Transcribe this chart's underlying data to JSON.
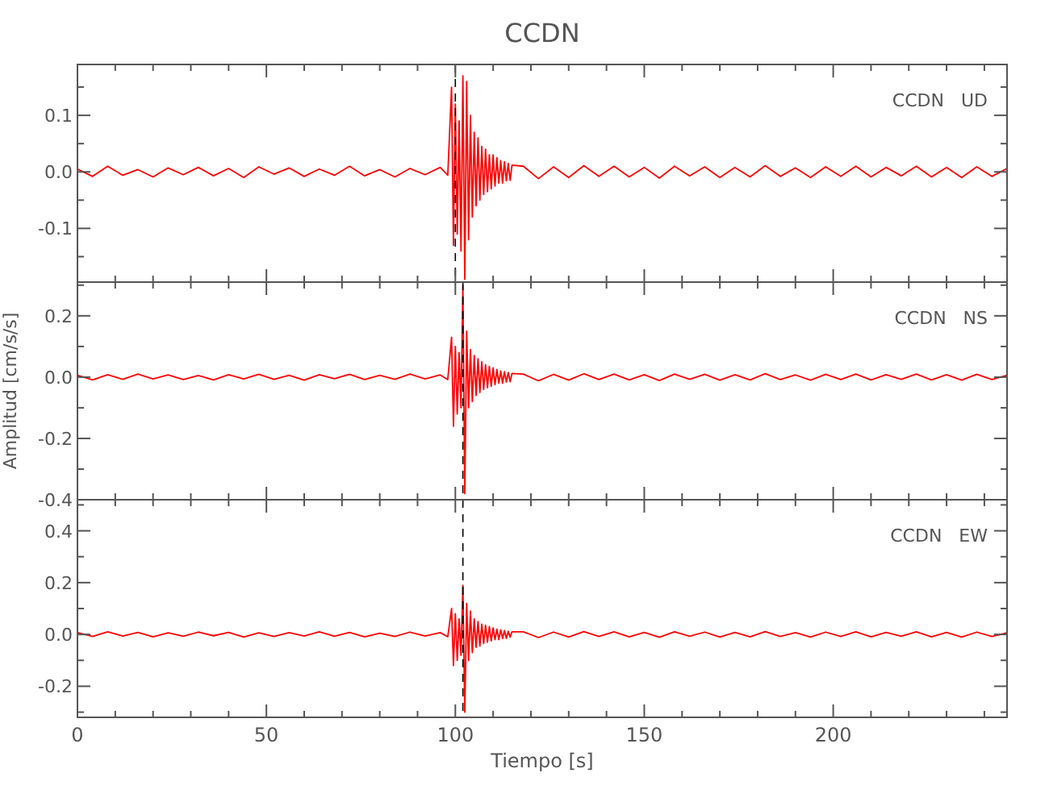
{
  "chart_data": [
    {
      "type": "line",
      "title": "CCDN",
      "annotations": [
        "CCDN   UD"
      ],
      "tick_labels": "y",
      "x": [
        0,
        4,
        8,
        12,
        16,
        20,
        24,
        28,
        32,
        36,
        40,
        44,
        48,
        52,
        56,
        60,
        64,
        68,
        72,
        76,
        80,
        84,
        88,
        92,
        96,
        98,
        99,
        99.5,
        100,
        100.5,
        101,
        101.5,
        102,
        102.5,
        103,
        103.5,
        104,
        104.5,
        105,
        105.5,
        106,
        106.5,
        107,
        107.5,
        108,
        108.5,
        109,
        109.5,
        110,
        110.5,
        111,
        111.5,
        112,
        112.5,
        113,
        113.5,
        114,
        114.5,
        115,
        118,
        122,
        126,
        130,
        134,
        138,
        142,
        146,
        150,
        154,
        158,
        162,
        166,
        170,
        174,
        178,
        182,
        186,
        190,
        194,
        198,
        202,
        206,
        210,
        214,
        218,
        222,
        226,
        230,
        234,
        238,
        242,
        246
      ],
      "series": [
        {
          "color": "#ff0000",
          "values": [
            0.005,
            -0.008,
            0.01,
            -0.006,
            0.004,
            -0.009,
            0.007,
            -0.005,
            0.008,
            -0.007,
            0.006,
            -0.01,
            0.009,
            -0.004,
            0.007,
            -0.008,
            0.005,
            -0.006,
            0.01,
            -0.007,
            0.004,
            -0.009,
            0.006,
            -0.005,
            0.008,
            -0.006,
            0.15,
            -0.13,
            0.12,
            -0.11,
            0.09,
            -0.14,
            0.17,
            -0.19,
            0.16,
            -0.12,
            0.1,
            -0.08,
            0.07,
            -0.06,
            0.06,
            -0.05,
            0.045,
            -0.04,
            0.04,
            -0.035,
            0.03,
            -0.03,
            0.03,
            -0.025,
            0.025,
            -0.02,
            0.02,
            -0.02,
            0.018,
            -0.016,
            0.015,
            -0.015,
            0.012,
            0.01,
            -0.012,
            0.009,
            -0.01,
            0.011,
            -0.008,
            0.01,
            -0.009,
            0.008,
            -0.011,
            0.01,
            -0.007,
            0.009,
            -0.01,
            0.008,
            -0.009,
            0.011,
            -0.008,
            0.007,
            -0.01,
            0.009,
            -0.008,
            0.01,
            -0.009,
            0.008,
            -0.007,
            0.01,
            -0.009,
            0.008,
            -0.01,
            0.009,
            -0.008,
            0.006
          ]
        }
      ],
      "xlim": [
        0,
        246
      ],
      "xticks": [
        0,
        {
          "value": 10,
          "label": null
        },
        {
          "value": 20,
          "label": null
        },
        {
          "value": 30,
          "label": null
        },
        {
          "value": 40,
          "label": null
        },
        50,
        {
          "value": 60,
          "label": null
        },
        {
          "value": 70,
          "label": null
        },
        {
          "value": 80,
          "label": null
        },
        {
          "value": 90,
          "label": null
        },
        100,
        {
          "value": 110,
          "label": null
        },
        {
          "value": 120,
          "label": null
        },
        {
          "value": 130,
          "label": null
        },
        {
          "value": 140,
          "label": null
        },
        150,
        {
          "value": 160,
          "label": null
        },
        {
          "value": 170,
          "label": null
        },
        {
          "value": 180,
          "label": null
        },
        {
          "value": 190,
          "label": null
        },
        200,
        {
          "value": 210,
          "label": null
        },
        {
          "value": 220,
          "label": null
        },
        {
          "value": 230,
          "label": null
        },
        {
          "value": 240,
          "label": null
        }
      ],
      "ylim": [
        -0.195,
        0.19
      ],
      "yticks": [
        {
          "value": -0.15,
          "label": null
        },
        -0.1,
        {
          "value": -0.05,
          "label": null
        },
        {
          "value": 0,
          "label": "0.0"
        },
        {
          "value": 0.05,
          "label": null
        },
        0.1,
        {
          "value": 0.15,
          "label": null
        }
      ],
      "ref_lines": [
        {
          "axis": "x",
          "value": 100,
          "color": "#000000",
          "line_style": "dashed"
        }
      ]
    },
    {
      "type": "line",
      "ylabel": "Amplitud [cm/s/s]",
      "annotations": [
        "CCDN   NS"
      ],
      "tick_labels": "y",
      "x": [
        0,
        4,
        8,
        12,
        16,
        20,
        24,
        28,
        32,
        36,
        40,
        44,
        48,
        52,
        56,
        60,
        64,
        68,
        72,
        76,
        80,
        84,
        88,
        92,
        96,
        98,
        99,
        99.5,
        100,
        100.5,
        101,
        101.5,
        102,
        102.5,
        103,
        103.5,
        104,
        104.5,
        105,
        105.5,
        106,
        106.5,
        107,
        107.5,
        108,
        108.5,
        109,
        109.5,
        110,
        110.5,
        111,
        111.5,
        112,
        112.5,
        113,
        113.5,
        114,
        114.5,
        115,
        118,
        122,
        126,
        130,
        134,
        138,
        142,
        146,
        150,
        154,
        158,
        162,
        166,
        170,
        174,
        178,
        182,
        186,
        190,
        194,
        198,
        202,
        206,
        210,
        214,
        218,
        222,
        226,
        230,
        234,
        238,
        242,
        246
      ],
      "series": [
        {
          "color": "#ff0000",
          "values": [
            0.006,
            -0.009,
            0.008,
            -0.007,
            0.01,
            -0.006,
            0.007,
            -0.008,
            0.005,
            -0.009,
            0.008,
            -0.006,
            0.009,
            -0.007,
            0.006,
            -0.01,
            0.008,
            -0.005,
            0.009,
            -0.008,
            0.006,
            -0.007,
            0.01,
            -0.006,
            0.007,
            -0.008,
            0.13,
            -0.16,
            0.1,
            -0.12,
            0.08,
            -0.1,
            0.3,
            -0.38,
            0.15,
            -0.1,
            0.09,
            -0.08,
            0.07,
            -0.06,
            0.06,
            -0.05,
            0.05,
            -0.04,
            0.04,
            -0.035,
            0.035,
            -0.03,
            0.03,
            -0.025,
            0.025,
            -0.02,
            0.02,
            -0.02,
            0.018,
            -0.016,
            0.015,
            -0.015,
            0.012,
            0.01,
            -0.012,
            0.009,
            -0.01,
            0.011,
            -0.008,
            0.01,
            -0.009,
            0.008,
            -0.011,
            0.01,
            -0.007,
            0.009,
            -0.01,
            0.008,
            -0.009,
            0.011,
            -0.008,
            0.007,
            -0.01,
            0.009,
            -0.008,
            0.01,
            -0.009,
            0.008,
            -0.007,
            0.01,
            -0.009,
            0.008,
            -0.01,
            0.009,
            -0.008,
            0.006
          ]
        }
      ],
      "xlim": [
        0,
        246
      ],
      "xticks": [
        0,
        {
          "value": 10,
          "label": null
        },
        {
          "value": 20,
          "label": null
        },
        {
          "value": 30,
          "label": null
        },
        {
          "value": 40,
          "label": null
        },
        50,
        {
          "value": 60,
          "label": null
        },
        {
          "value": 70,
          "label": null
        },
        {
          "value": 80,
          "label": null
        },
        {
          "value": 90,
          "label": null
        },
        100,
        {
          "value": 110,
          "label": null
        },
        {
          "value": 120,
          "label": null
        },
        {
          "value": 130,
          "label": null
        },
        {
          "value": 140,
          "label": null
        },
        150,
        {
          "value": 160,
          "label": null
        },
        {
          "value": 170,
          "label": null
        },
        {
          "value": 180,
          "label": null
        },
        {
          "value": 190,
          "label": null
        },
        200,
        {
          "value": 210,
          "label": null
        },
        {
          "value": 220,
          "label": null
        },
        {
          "value": 230,
          "label": null
        },
        {
          "value": 240,
          "label": null
        }
      ],
      "ylim": [
        -0.4,
        0.31
      ],
      "yticks": [
        -0.4,
        {
          "value": -0.3,
          "label": null
        },
        -0.2,
        {
          "value": -0.1,
          "label": null
        },
        {
          "value": 0,
          "label": "0.0"
        },
        {
          "value": 0.1,
          "label": null
        },
        0.2,
        {
          "value": 0.3,
          "label": null
        }
      ],
      "ref_lines": [
        {
          "axis": "x",
          "value": 102,
          "color": "#000000",
          "line_style": "dashed"
        }
      ]
    },
    {
      "type": "line",
      "xlabel": "Tiempo [s]",
      "annotations": [
        "CCDN   EW"
      ],
      "x": [
        0,
        4,
        8,
        12,
        16,
        20,
        24,
        28,
        32,
        36,
        40,
        44,
        48,
        52,
        56,
        60,
        64,
        68,
        72,
        76,
        80,
        84,
        88,
        92,
        96,
        98,
        99,
        99.5,
        100,
        100.5,
        101,
        101.5,
        102,
        102.5,
        103,
        103.5,
        104,
        104.5,
        105,
        105.5,
        106,
        106.5,
        107,
        107.5,
        108,
        108.5,
        109,
        109.5,
        110,
        110.5,
        111,
        111.5,
        112,
        112.5,
        113,
        113.5,
        114,
        114.5,
        115,
        118,
        122,
        126,
        130,
        134,
        138,
        142,
        146,
        150,
        154,
        158,
        162,
        166,
        170,
        174,
        178,
        182,
        186,
        190,
        194,
        198,
        202,
        206,
        210,
        214,
        218,
        222,
        226,
        230,
        234,
        238,
        242,
        246
      ],
      "series": [
        {
          "color": "#ff0000",
          "values": [
            0.007,
            -0.008,
            0.01,
            -0.006,
            0.008,
            -0.009,
            0.006,
            -0.007,
            0.009,
            -0.005,
            0.008,
            -0.01,
            0.006,
            -0.008,
            0.007,
            -0.006,
            0.01,
            -0.007,
            0.008,
            -0.009,
            0.005,
            -0.008,
            0.009,
            -0.006,
            0.007,
            -0.009,
            0.1,
            -0.12,
            0.08,
            -0.1,
            0.06,
            -0.08,
            0.19,
            -0.3,
            0.12,
            -0.1,
            0.09,
            -0.07,
            0.06,
            -0.05,
            0.05,
            -0.045,
            0.04,
            -0.035,
            0.035,
            -0.03,
            0.03,
            -0.025,
            0.025,
            -0.02,
            0.02,
            -0.02,
            0.018,
            -0.016,
            0.015,
            -0.015,
            0.012,
            -0.01,
            0.01,
            0.01,
            -0.012,
            0.009,
            -0.01,
            0.011,
            -0.008,
            0.01,
            -0.009,
            0.008,
            -0.011,
            0.01,
            -0.007,
            0.009,
            -0.01,
            0.008,
            -0.009,
            0.011,
            -0.008,
            0.007,
            -0.01,
            0.009,
            -0.008,
            0.01,
            -0.009,
            0.008,
            -0.007,
            0.01,
            -0.009,
            0.008,
            -0.01,
            0.009,
            -0.008,
            0.006
          ]
        }
      ],
      "xlim": [
        0,
        246
      ],
      "xticks": [
        0,
        {
          "value": 10,
          "label": null
        },
        {
          "value": 20,
          "label": null
        },
        {
          "value": 30,
          "label": null
        },
        {
          "value": 40,
          "label": null
        },
        50,
        {
          "value": 60,
          "label": null
        },
        {
          "value": 70,
          "label": null
        },
        {
          "value": 80,
          "label": null
        },
        {
          "value": 90,
          "label": null
        },
        100,
        {
          "value": 110,
          "label": null
        },
        {
          "value": 120,
          "label": null
        },
        {
          "value": 130,
          "label": null
        },
        {
          "value": 140,
          "label": null
        },
        150,
        {
          "value": 160,
          "label": null
        },
        {
          "value": 170,
          "label": null
        },
        {
          "value": 180,
          "label": null
        },
        {
          "value": 190,
          "label": null
        },
        200,
        {
          "value": 210,
          "label": null
        },
        {
          "value": 220,
          "label": null
        },
        {
          "value": 230,
          "label": null
        },
        {
          "value": 240,
          "label": null
        }
      ],
      "ylim": [
        -0.32,
        0.52
      ],
      "yticks": [
        {
          "value": -0.3,
          "label": null
        },
        -0.2,
        {
          "value": -0.1,
          "label": null
        },
        {
          "value": 0,
          "label": "0.0"
        },
        {
          "value": 0.1,
          "label": null
        },
        0.2,
        {
          "value": 0.3,
          "label": null
        },
        0.4,
        {
          "value": 0.5,
          "label": null
        }
      ],
      "ref_lines": [
        {
          "axis": "x",
          "value": 102,
          "color": "#000000",
          "line_style": "dashed"
        }
      ]
    }
  ]
}
